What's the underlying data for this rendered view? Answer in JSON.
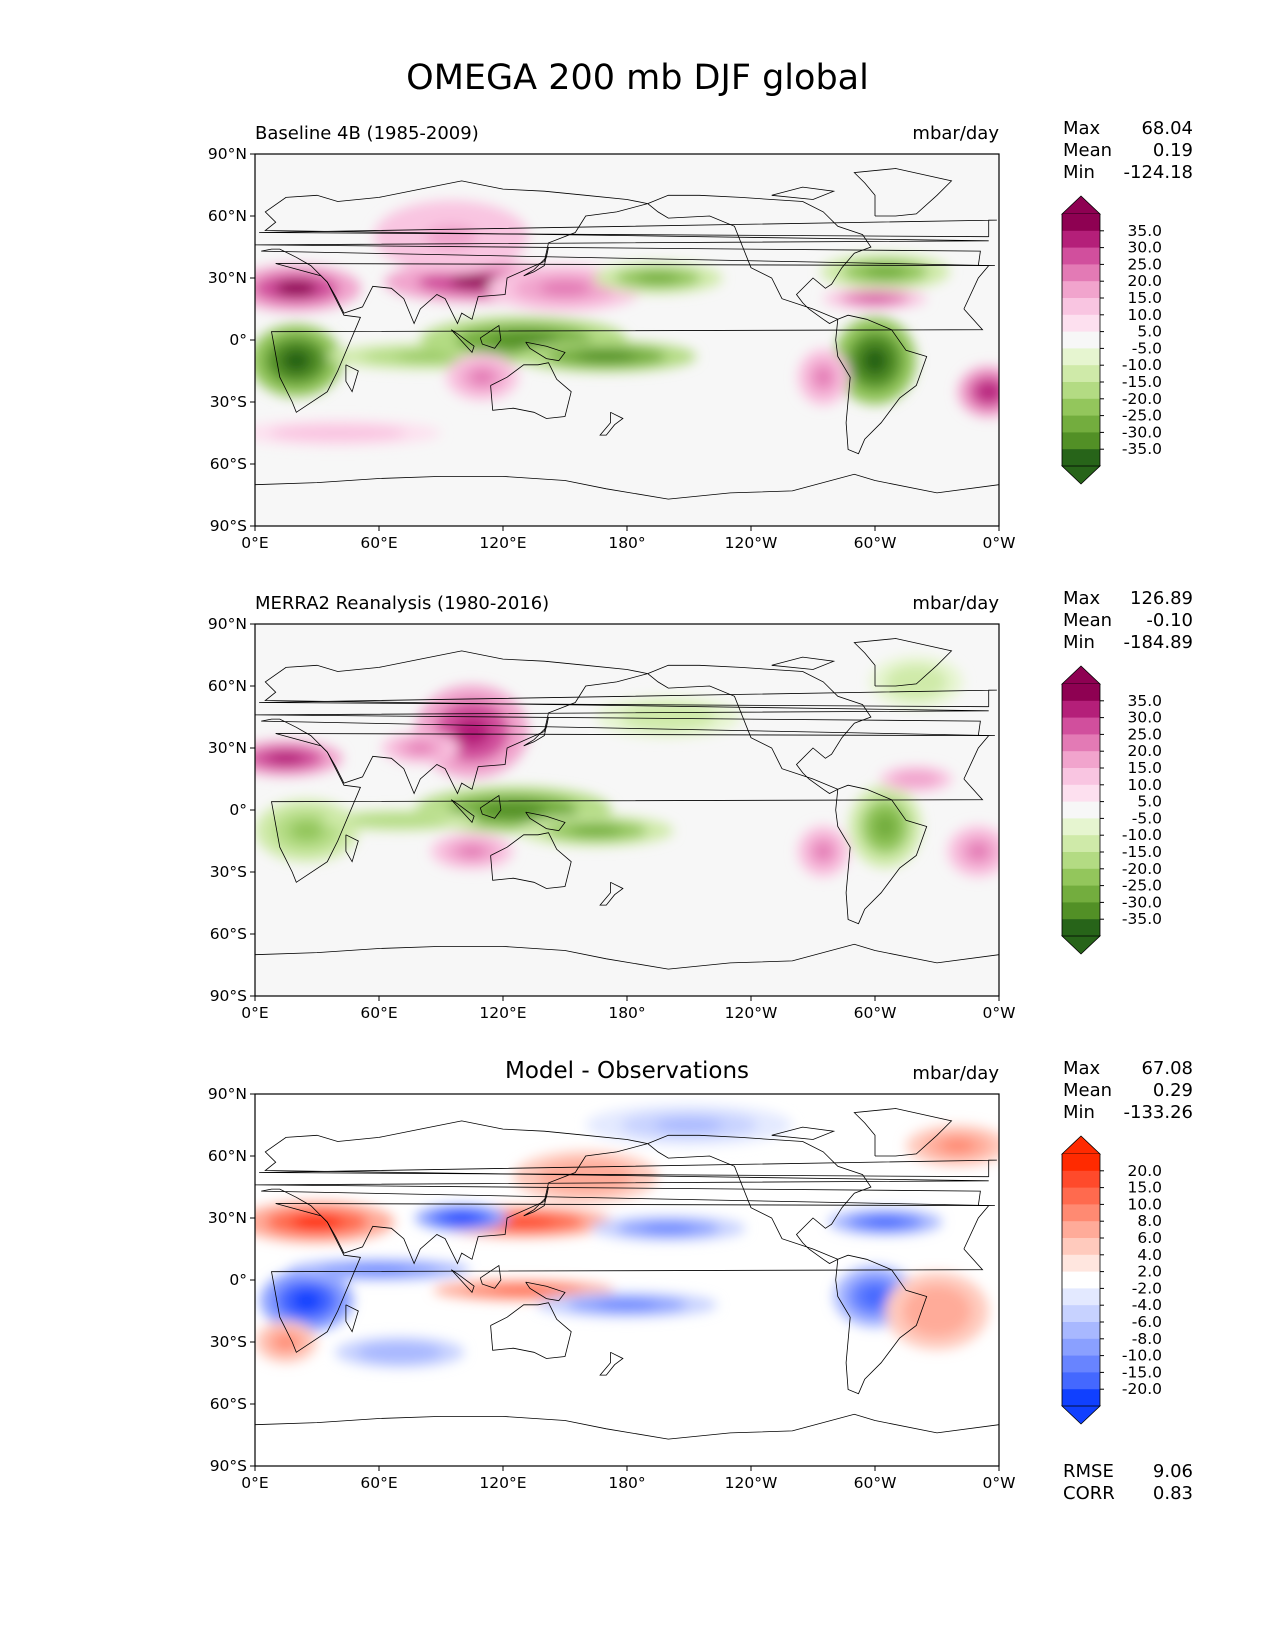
{
  "figure": {
    "title": "OMEGA 200 mb DJF global"
  },
  "colors": {
    "seq_pos": [
      "#f7f7f7",
      "#fde0ef",
      "#f9c5e1",
      "#f1a4cd",
      "#e37ab5",
      "#d14f9d",
      "#b41f79",
      "#8e0152"
    ],
    "seq_neg": [
      "#f7f7f7",
      "#e6f5d0",
      "#cfeaa9",
      "#b3db83",
      "#93c65c",
      "#73ad3e",
      "#529026",
      "#276419"
    ],
    "diff_pos": [
      "#ffffff",
      "#ffe6df",
      "#ffcabd",
      "#ffab99",
      "#ff8a72",
      "#ff6a4e",
      "#ff4a2b",
      "#ff2a00"
    ],
    "diff_neg": [
      "#ffffff",
      "#e3e9ff",
      "#c7d2ff",
      "#a8b8ff",
      "#8aa0ff",
      "#6884ff",
      "#4468ff",
      "#1040ff"
    ],
    "coast": "#000000",
    "ocean_bg": "#f7f7f7"
  },
  "chart_data": [
    {
      "type": "heatmap",
      "panel": "baseline",
      "title_left": "Baseline 4B (1985-2009)",
      "title_right": "mbar/day",
      "xlabel": "",
      "ylabel": "",
      "x_ticks": [
        "0°E",
        "60°E",
        "120°E",
        "180°",
        "120°W",
        "60°W",
        "0°W"
      ],
      "x_tick_lons": [
        0,
        60,
        120,
        180,
        240,
        300,
        360
      ],
      "y_ticks": [
        "90°N",
        "60°N",
        "30°N",
        "0°",
        "30°S",
        "60°S",
        "90°S"
      ],
      "y_tick_lats": [
        90,
        60,
        30,
        0,
        -30,
        -60,
        -90
      ],
      "xlim": [
        0,
        360
      ],
      "ylim": [
        -90,
        90
      ],
      "stats": {
        "max_label": "Max",
        "max": "68.04",
        "mean_label": "Mean",
        "mean": "0.19",
        "min_label": "Min",
        "min": "-124.18"
      },
      "colorbar": {
        "palette": "seq",
        "levels": [
          "35.0",
          "30.0",
          "25.0",
          "20.0",
          "15.0",
          "10.0",
          "5.0",
          "-5.0",
          "-10.0",
          "-15.0",
          "-20.0",
          "-25.0",
          "-30.0",
          "-35.0"
        ]
      },
      "features": [
        {
          "lon": 20,
          "lat": 25,
          "rlon": 25,
          "rlat": 9,
          "v": 33
        },
        {
          "lon": 110,
          "lat": 28,
          "rlon": 38,
          "rlat": 8,
          "v": 32
        },
        {
          "lon": 150,
          "lat": 25,
          "rlon": 30,
          "rlat": 9,
          "v": 20
        },
        {
          "lon": 95,
          "lat": 50,
          "rlon": 30,
          "rlat": 14,
          "v": 12
        },
        {
          "lon": 20,
          "lat": -10,
          "rlon": 18,
          "rlat": 14,
          "v": -36
        },
        {
          "lon": 85,
          "lat": -8,
          "rlon": 40,
          "rlat": 5,
          "v": -18
        },
        {
          "lon": 130,
          "lat": 0,
          "rlon": 40,
          "rlat": 9,
          "v": -30
        },
        {
          "lon": 170,
          "lat": -8,
          "rlon": 35,
          "rlat": 6,
          "v": -28
        },
        {
          "lon": 195,
          "lat": 30,
          "rlon": 25,
          "rlat": 6,
          "v": -22
        },
        {
          "lon": 300,
          "lat": -10,
          "rlon": 16,
          "rlat": 17,
          "v": -34
        },
        {
          "lon": 305,
          "lat": 33,
          "rlon": 25,
          "rlat": 7,
          "v": -22
        },
        {
          "lon": 110,
          "lat": -18,
          "rlon": 14,
          "rlat": 9,
          "v": 20
        },
        {
          "lon": 275,
          "lat": -18,
          "rlon": 10,
          "rlat": 11,
          "v": 20
        },
        {
          "lon": 355,
          "lat": -25,
          "rlon": 12,
          "rlat": 10,
          "v": 30
        },
        {
          "lon": 300,
          "lat": 20,
          "rlon": 20,
          "rlat": 4,
          "v": 22
        },
        {
          "lon": 40,
          "lat": -45,
          "rlon": 40,
          "rlat": 5,
          "v": 8
        }
      ]
    },
    {
      "type": "heatmap",
      "panel": "observations",
      "title_left": "MERRA2 Reanalysis (1980-2016)",
      "title_right": "mbar/day",
      "x_ticks": [
        "0°E",
        "60°E",
        "120°E",
        "180°",
        "120°W",
        "60°W",
        "0°W"
      ],
      "x_tick_lons": [
        0,
        60,
        120,
        180,
        240,
        300,
        360
      ],
      "y_ticks": [
        "90°N",
        "60°N",
        "30°N",
        "0°",
        "30°S",
        "60°S",
        "90°S"
      ],
      "y_tick_lats": [
        90,
        60,
        30,
        0,
        -30,
        -60,
        -90
      ],
      "xlim": [
        0,
        360
      ],
      "ylim": [
        -90,
        90
      ],
      "stats": {
        "max_label": "Max",
        "max": "126.89",
        "mean_label": "Mean",
        "mean": "-0.10",
        "min_label": "Min",
        "min": "-184.89"
      },
      "colorbar": {
        "palette": "seq",
        "levels": [
          "35.0",
          "30.0",
          "25.0",
          "20.0",
          "15.0",
          "10.0",
          "5.0",
          "-5.0",
          "-10.0",
          "-15.0",
          "-20.0",
          "-25.0",
          "-30.0",
          "-35.0"
        ]
      },
      "features": [
        {
          "lon": 15,
          "lat": 25,
          "rlon": 22,
          "rlat": 7,
          "v": 28
        },
        {
          "lon": 105,
          "lat": 38,
          "rlon": 22,
          "rlat": 18,
          "v": 30
        },
        {
          "lon": 80,
          "lat": 30,
          "rlon": 15,
          "rlat": 6,
          "v": 18
        },
        {
          "lon": 25,
          "lat": -10,
          "rlon": 20,
          "rlat": 12,
          "v": -20
        },
        {
          "lon": 125,
          "lat": 0,
          "rlon": 38,
          "rlat": 9,
          "v": -30
        },
        {
          "lon": 165,
          "lat": -10,
          "rlon": 30,
          "rlat": 6,
          "v": -22
        },
        {
          "lon": 70,
          "lat": -5,
          "rlon": 30,
          "rlat": 4,
          "v": -14
        },
        {
          "lon": 200,
          "lat": 45,
          "rlon": 28,
          "rlat": 8,
          "v": -10
        },
        {
          "lon": 305,
          "lat": -8,
          "rlon": 14,
          "rlat": 16,
          "v": -22
        },
        {
          "lon": 105,
          "lat": -20,
          "rlon": 16,
          "rlat": 7,
          "v": 18
        },
        {
          "lon": 275,
          "lat": -20,
          "rlon": 10,
          "rlat": 10,
          "v": 18
        },
        {
          "lon": 350,
          "lat": -20,
          "rlon": 12,
          "rlat": 10,
          "v": 18
        },
        {
          "lon": 320,
          "lat": 15,
          "rlon": 14,
          "rlat": 5,
          "v": 14
        },
        {
          "lon": 320,
          "lat": 62,
          "rlon": 18,
          "rlat": 10,
          "v": -10
        }
      ]
    },
    {
      "type": "heatmap",
      "panel": "difference",
      "title_center": "Model - Observations",
      "title_right": "mbar/day",
      "x_ticks": [
        "0°E",
        "60°E",
        "120°E",
        "180°",
        "120°W",
        "60°W",
        "0°W"
      ],
      "x_tick_lons": [
        0,
        60,
        120,
        180,
        240,
        300,
        360
      ],
      "y_ticks": [
        "90°N",
        "60°N",
        "30°N",
        "0°",
        "30°S",
        "60°S",
        "90°S"
      ],
      "y_tick_lats": [
        90,
        60,
        30,
        0,
        -30,
        -60,
        -90
      ],
      "xlim": [
        0,
        360
      ],
      "ylim": [
        -90,
        90
      ],
      "stats": {
        "max_label": "Max",
        "max": "67.08",
        "mean_label": "Mean",
        "mean": "0.29",
        "min_label": "Min",
        "min": "-133.26"
      },
      "bottom_stats": {
        "rmse_label": "RMSE",
        "rmse": "9.06",
        "corr_label": "CORR",
        "corr": "0.83"
      },
      "colorbar": {
        "palette": "diff",
        "levels": [
          "20.0",
          "15.0",
          "10.0",
          "8.0",
          "6.0",
          "4.0",
          "2.0",
          "-2.0",
          "-4.0",
          "-6.0",
          "-8.0",
          "-10.0",
          "-15.0",
          "-20.0"
        ]
      },
      "features": [
        {
          "lon": 30,
          "lat": 28,
          "rlon": 30,
          "rlat": 8,
          "v": 18
        },
        {
          "lon": 130,
          "lat": 28,
          "rlon": 35,
          "rlat": 6,
          "v": 16
        },
        {
          "lon": 25,
          "lat": -10,
          "rlon": 18,
          "rlat": 12,
          "v": -20
        },
        {
          "lon": 100,
          "lat": 30,
          "rlon": 18,
          "rlat": 5,
          "v": -20
        },
        {
          "lon": 60,
          "lat": 5,
          "rlon": 35,
          "rlat": 4,
          "v": -14
        },
        {
          "lon": 130,
          "lat": -5,
          "rlon": 35,
          "rlat": 4,
          "v": 14
        },
        {
          "lon": 180,
          "lat": -12,
          "rlon": 35,
          "rlat": 5,
          "v": -12
        },
        {
          "lon": 200,
          "lat": 25,
          "rlon": 30,
          "rlat": 5,
          "v": -12
        },
        {
          "lon": 300,
          "lat": -8,
          "rlon": 16,
          "rlat": 12,
          "v": -16
        },
        {
          "lon": 305,
          "lat": 28,
          "rlon": 22,
          "rlat": 5,
          "v": -16
        },
        {
          "lon": 210,
          "lat": 75,
          "rlon": 40,
          "rlat": 8,
          "v": -6
        },
        {
          "lon": 15,
          "lat": -30,
          "rlon": 12,
          "rlat": 8,
          "v": 10
        },
        {
          "lon": 340,
          "lat": 65,
          "rlon": 20,
          "rlat": 8,
          "v": 10
        },
        {
          "lon": 330,
          "lat": -15,
          "rlon": 20,
          "rlat": 15,
          "v": 8
        },
        {
          "lon": 160,
          "lat": 50,
          "rlon": 28,
          "rlat": 10,
          "v": 8
        },
        {
          "lon": 70,
          "lat": -35,
          "rlon": 25,
          "rlat": 6,
          "v": -8
        }
      ]
    }
  ]
}
